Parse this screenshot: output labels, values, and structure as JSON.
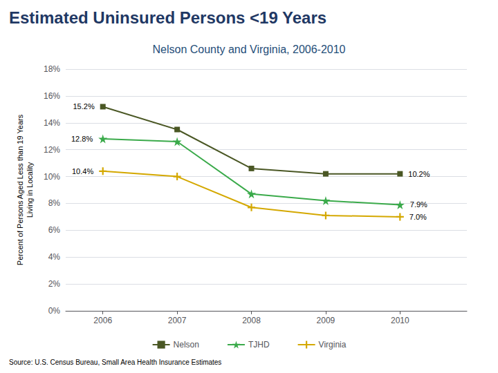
{
  "chart_data": {
    "type": "line",
    "title": "Estimated Uninsured Persons <19 Years",
    "subtitle": "Nelson County and Virginia, 2006-2010",
    "title_color": "#1f3864",
    "subtitle_color": "#1f4e79",
    "ylabel": "Percent of Persons Aged Less than 19 Years\nLiving in Locality",
    "source": "Source: U.S. Census Bureau, Small Area Health Insurance Estimates",
    "x": [
      2006,
      2007,
      2008,
      2009,
      2010
    ],
    "series": [
      {
        "name": "Nelson",
        "color": "#4a5724",
        "marker": "square",
        "values": [
          15.2,
          13.5,
          10.6,
          10.2,
          10.2
        ]
      },
      {
        "name": "TJHD",
        "color": "#3aaa4a",
        "marker": "star",
        "values": [
          12.8,
          12.6,
          8.7,
          8.2,
          7.9
        ]
      },
      {
        "name": "Virginia",
        "color": "#d4a800",
        "marker": "plus",
        "values": [
          10.4,
          10.0,
          7.7,
          7.1,
          7.0
        ]
      }
    ],
    "annotations": [
      {
        "series": "Nelson",
        "x": 2006,
        "y": 15.2,
        "text": "15.2%"
      },
      {
        "series": "Nelson",
        "x": 2010,
        "y": 10.2,
        "text": "10.2%"
      },
      {
        "series": "TJHD",
        "x": 2006,
        "y": 12.8,
        "text": "12.8%"
      },
      {
        "series": "TJHD",
        "x": 2010,
        "y": 7.9,
        "text": "7.9%"
      },
      {
        "series": "Virginia",
        "x": 2006,
        "y": 10.4,
        "text": "10.4%"
      },
      {
        "series": "Virginia",
        "x": 2010,
        "y": 7.0,
        "text": "7.0%"
      }
    ],
    "xlim": [
      2005.5,
      2010.9
    ],
    "xticks": [
      2006,
      2007,
      2008,
      2009,
      2010
    ],
    "ylim": [
      0,
      18
    ],
    "yticks": [
      {
        "value": 0,
        "label": "0%"
      },
      {
        "value": 2,
        "label": "2%"
      },
      {
        "value": 4,
        "label": "4%"
      },
      {
        "value": 6,
        "label": "6%"
      },
      {
        "value": 8,
        "label": "8%"
      },
      {
        "value": 10,
        "label": "10%"
      },
      {
        "value": 12,
        "label": "12%"
      },
      {
        "value": 14,
        "label": "14%"
      },
      {
        "value": 16,
        "label": "16%"
      },
      {
        "value": 18,
        "label": "18%"
      }
    ],
    "grid": true,
    "legend": "bottom"
  }
}
